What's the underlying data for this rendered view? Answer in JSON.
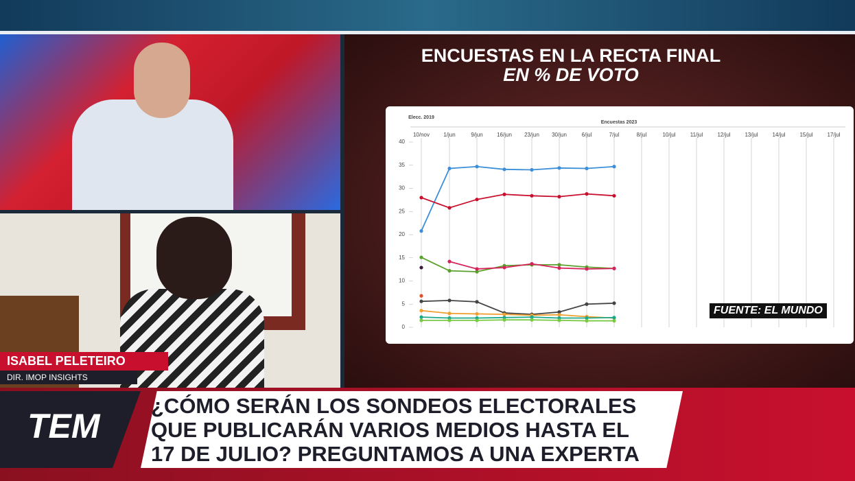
{
  "title": "ENCUESTAS EN LA RECTA FINAL",
  "subtitle": "EN % DE VOTO",
  "source": "FUENTE: EL MUNDO",
  "guest": {
    "name": "ISABEL PELETEIRO",
    "role": "DIR. IMOP INSIGHTS"
  },
  "logo": "TEM",
  "headline": [
    "¿CÓMO SERÁN LOS SONDEOS ELECTORALES",
    "QUE PUBLICARÁN VARIOS MEDIOS HASTA EL",
    "17 DE JULIO? PREGUNTAMOS A UNA EXPERTA"
  ],
  "chart_data": {
    "type": "line",
    "group_labels": [
      "Elecc. 2019",
      "Encuestas 2023"
    ],
    "categories": [
      "10/nov",
      "1/jun",
      "9/jun",
      "16/jun",
      "23/jun",
      "30/jun",
      "6/jul",
      "7/jul",
      "8/jul",
      "10/jul",
      "11/jul",
      "12/jul",
      "13/jul",
      "14/jul",
      "15/jul",
      "17/jul"
    ],
    "ylim": [
      0,
      40
    ],
    "yticks": [
      0,
      5,
      10,
      15,
      20,
      25,
      30,
      35,
      40
    ],
    "grid": true,
    "series": [
      {
        "color": "#3b8fd8",
        "values": [
          20.8,
          34.3,
          34.7,
          34.1,
          34.0,
          34.4,
          34.3,
          34.7,
          null,
          null,
          null,
          null,
          null,
          null,
          null,
          null
        ]
      },
      {
        "color": "#c8102e",
        "values": [
          28.0,
          25.8,
          27.6,
          28.7,
          28.4,
          28.2,
          28.8,
          28.4,
          null,
          null,
          null,
          null,
          null,
          null,
          null,
          null
        ]
      },
      {
        "color": "#5aa02c",
        "values": [
          15.1,
          12.2,
          12.0,
          13.3,
          13.5,
          13.5,
          13.0,
          12.7,
          null,
          null,
          null,
          null,
          null,
          null,
          null,
          null
        ]
      },
      {
        "color": "#d6245a",
        "values": [
          null,
          14.2,
          12.6,
          12.9,
          13.7,
          12.8,
          12.6,
          12.7,
          null,
          null,
          null,
          null,
          null,
          null,
          null,
          null
        ]
      },
      {
        "color": "#3a1a3a",
        "values": [
          12.9,
          null,
          null,
          null,
          null,
          null,
          null,
          null,
          null,
          null,
          null,
          null,
          null,
          null,
          null,
          null
        ]
      },
      {
        "color": "#444444",
        "values": [
          5.6,
          5.8,
          5.5,
          3.1,
          2.8,
          3.3,
          5.0,
          5.2,
          null,
          null,
          null,
          null,
          null,
          null,
          null,
          null
        ]
      },
      {
        "color": "#e0502a",
        "values": [
          6.8,
          null,
          null,
          null,
          null,
          null,
          null,
          null,
          null,
          null,
          null,
          null,
          null,
          null,
          null,
          null
        ]
      },
      {
        "color": "#f0a030",
        "values": [
          3.6,
          3.0,
          2.9,
          2.8,
          2.6,
          2.7,
          2.3,
          2.0,
          null,
          null,
          null,
          null,
          null,
          null,
          null,
          null
        ]
      },
      {
        "color": "#1aa88a",
        "values": [
          2.2,
          2.0,
          2.0,
          2.1,
          2.2,
          2.0,
          2.0,
          2.1,
          null,
          null,
          null,
          null,
          null,
          null,
          null,
          null
        ]
      },
      {
        "color": "#7ac943",
        "values": [
          1.5,
          1.5,
          1.5,
          1.6,
          1.6,
          1.5,
          1.4,
          1.4,
          null,
          null,
          null,
          null,
          null,
          null,
          null,
          null
        ]
      }
    ]
  }
}
